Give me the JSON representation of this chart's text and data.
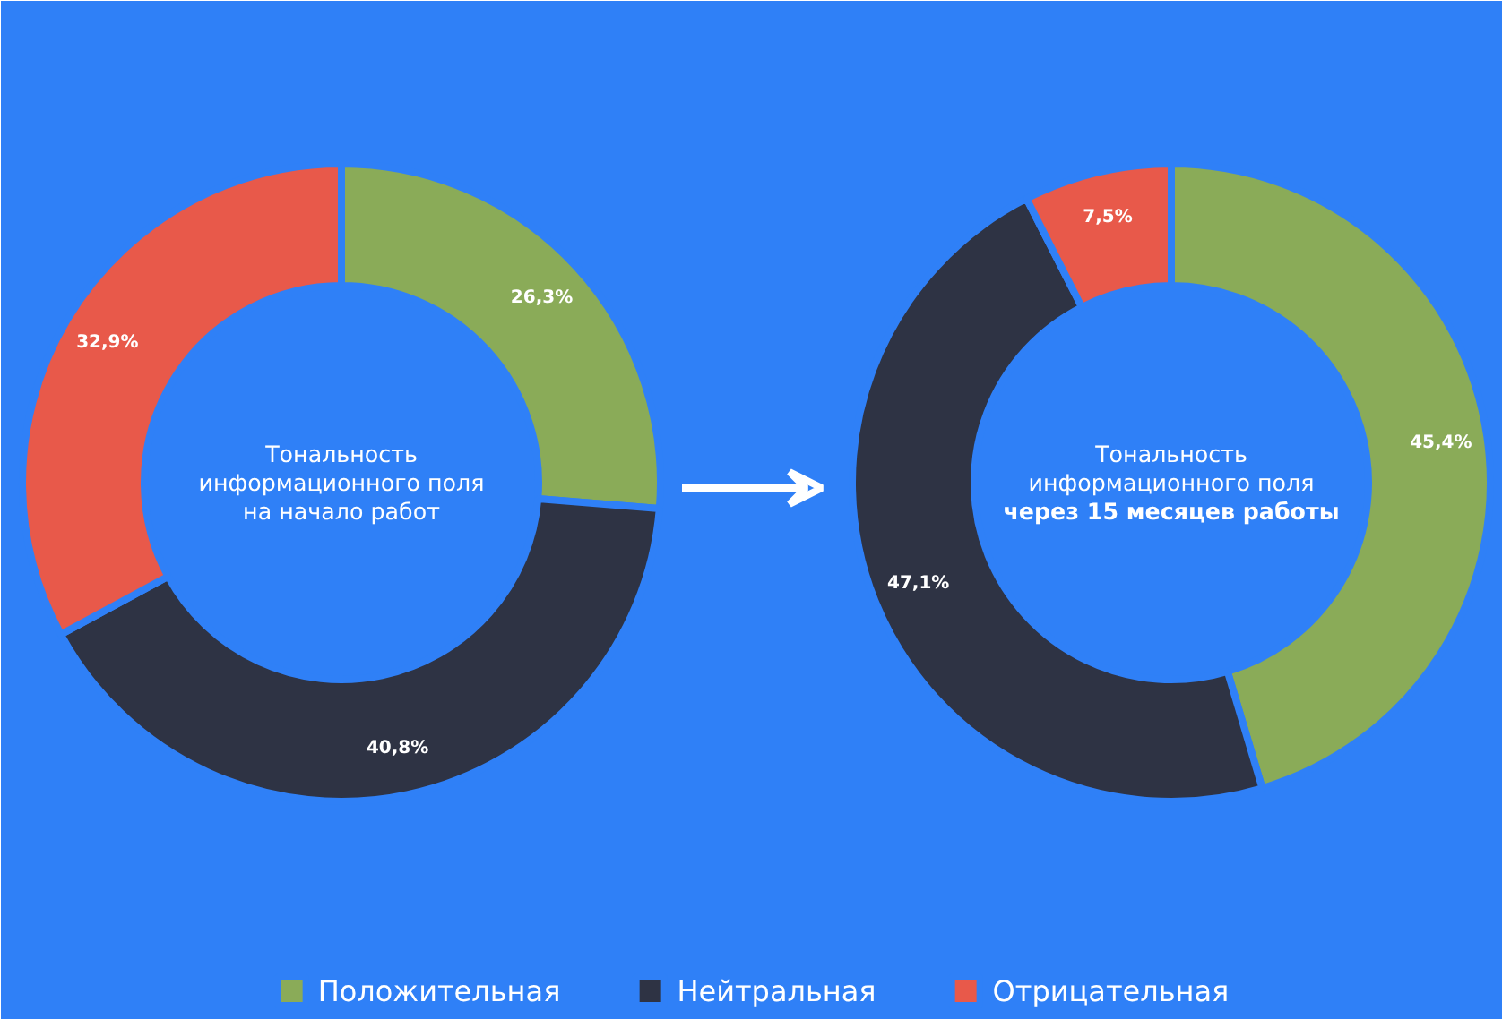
{
  "chart_data": [
    {
      "type": "donut",
      "title": "Тональность информационного поля",
      "subtitle": "на начало работ",
      "categories": [
        "Положительная",
        "Нейтральная",
        "Отрицательная"
      ],
      "values": [
        26.3,
        40.8,
        32.9
      ],
      "colors": [
        "#8aab58",
        "#2e3344",
        "#e8594a"
      ],
      "value_labels": [
        "26,3%",
        "40,8%",
        "32,9%"
      ],
      "legend": "bottom"
    },
    {
      "type": "donut",
      "title": "Тональность информационного поля",
      "subtitle": "через 15 месяцев работы",
      "values": [
        45.4,
        47.1,
        7.5
      ],
      "colors": [
        "#8aab58",
        "#2e3344",
        "#e8594a"
      ],
      "value_labels": [
        "45,4%",
        "47,1%",
        "7,5%"
      ]
    }
  ]
}
